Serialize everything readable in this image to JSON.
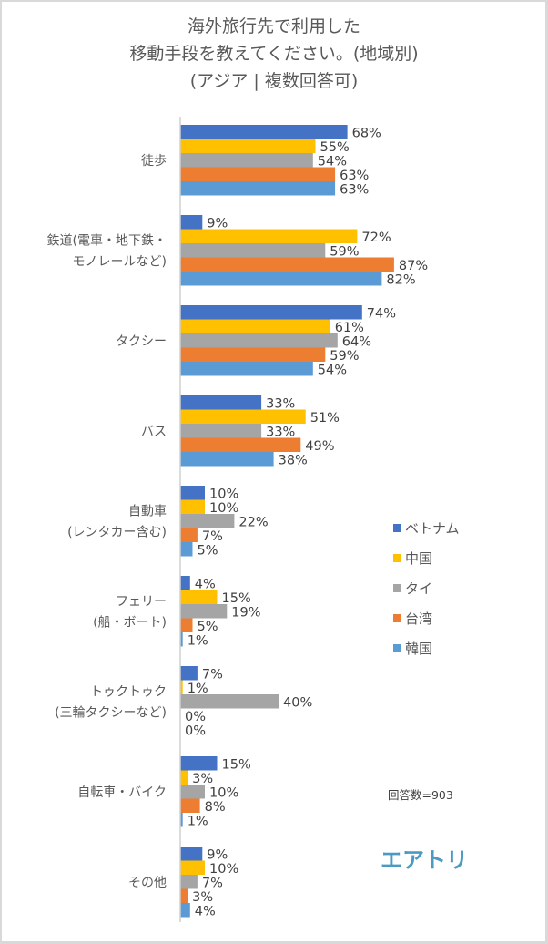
{
  "chart_data": {
    "type": "bar",
    "orientation": "horizontal",
    "title": [
      "海外旅行先で利用した",
      "移動手段を教えてください。(地域別)",
      "(アジア | 複数回答可)"
    ],
    "categories": [
      [
        "徒歩"
      ],
      [
        "鉄道(電車・地下鉄・",
        "モノレールなど)"
      ],
      [
        "タクシー"
      ],
      [
        "バス"
      ],
      [
        "自動車",
        "(レンタカー含む)"
      ],
      [
        "フェリー",
        "(船・ボート)"
      ],
      [
        "トゥクトゥク",
        "(三輪タクシーなど)"
      ],
      [
        "自転車・バイク"
      ],
      [
        "その他"
      ]
    ],
    "series": [
      {
        "name": "ベトナム",
        "color": "#4472c4",
        "values": [
          68,
          9,
          74,
          33,
          10,
          4,
          7,
          15,
          9
        ]
      },
      {
        "name": "中国",
        "color": "#ffc000",
        "values": [
          55,
          72,
          61,
          51,
          10,
          15,
          1,
          3,
          10
        ]
      },
      {
        "name": "タイ",
        "color": "#a5a5a5",
        "values": [
          54,
          59,
          64,
          33,
          22,
          19,
          40,
          10,
          7
        ]
      },
      {
        "name": "台湾",
        "color": "#ed7d31",
        "values": [
          63,
          87,
          59,
          49,
          7,
          5,
          0,
          8,
          3
        ]
      },
      {
        "name": "韓国",
        "color": "#5b9bd5",
        "values": [
          63,
          82,
          54,
          38,
          5,
          1,
          0,
          1,
          4
        ]
      }
    ],
    "value_suffix": "%",
    "xlim": [
      0,
      100
    ],
    "grid": false,
    "legend_position": "right",
    "annotation": "回答数=903",
    "logo": "エアトリ"
  }
}
